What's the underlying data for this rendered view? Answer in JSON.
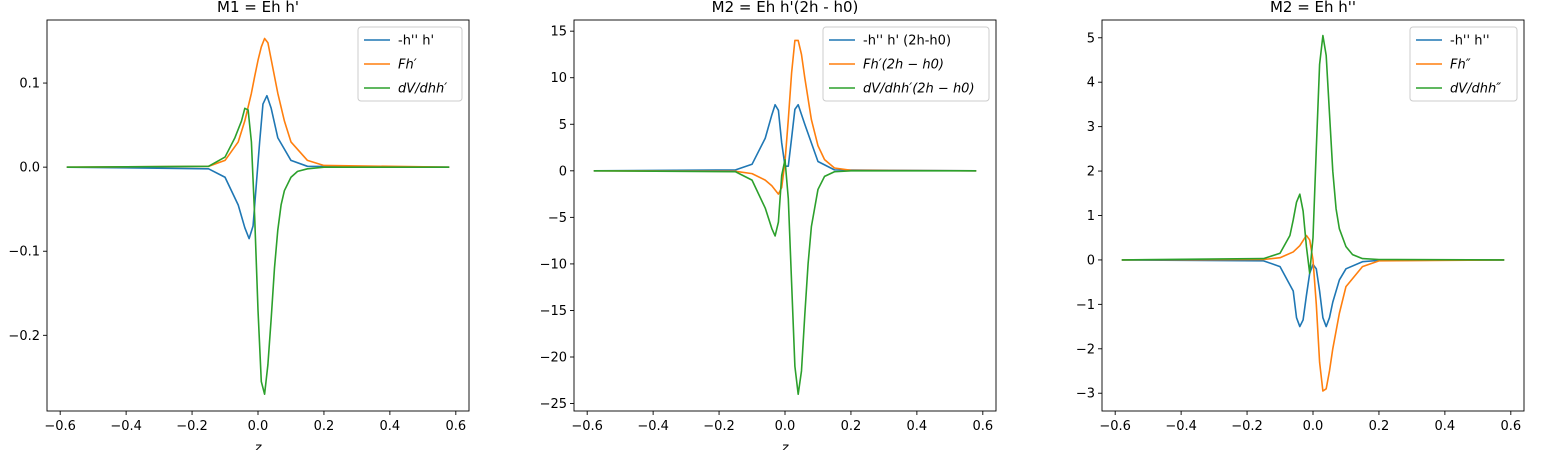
{
  "figure": {
    "background": "#ffffff"
  },
  "colors": {
    "series": [
      "#1f77b4",
      "#ff7f0e",
      "#2ca02c"
    ]
  },
  "chart_data": [
    {
      "type": "line",
      "title": "M1 = Eh h'",
      "xlabel": "z",
      "ylabel": "",
      "xlim": [
        -0.64,
        0.64
      ],
      "ylim": [
        -0.29,
        0.175
      ],
      "xticks": [
        -0.6,
        -0.4,
        -0.2,
        0.0,
        0.2,
        0.4,
        0.6
      ],
      "xtick_labels": [
        "−0.6",
        "−0.4",
        "−0.2",
        "0.0",
        "0.2",
        "0.4",
        "0.6"
      ],
      "yticks": [
        -0.2,
        -0.1,
        0.0,
        0.1
      ],
      "ytick_labels": [
        "−0.2",
        "−0.1",
        "0.0",
        "0.1"
      ],
      "legend_position": "upper right",
      "grid": false,
      "series": [
        {
          "name": "-h'' h'",
          "x": [
            -0.58,
            -0.15,
            -0.1,
            -0.06,
            -0.04,
            -0.027,
            -0.015,
            -0.005,
            0.005,
            0.015,
            0.027,
            0.04,
            0.06,
            0.1,
            0.15,
            0.58
          ],
          "y": [
            0,
            -0.002,
            -0.012,
            -0.045,
            -0.072,
            -0.085,
            -0.07,
            -0.02,
            0.03,
            0.075,
            0.085,
            0.07,
            0.035,
            0.008,
            0.001,
            0
          ]
        },
        {
          "name": "Fh′",
          "x": [
            -0.58,
            -0.15,
            -0.1,
            -0.06,
            -0.04,
            -0.02,
            -0.01,
            0.0,
            0.01,
            0.02,
            0.03,
            0.04,
            0.06,
            0.08,
            0.1,
            0.15,
            0.2,
            0.58
          ],
          "y": [
            0,
            0.001,
            0.008,
            0.03,
            0.055,
            0.088,
            0.108,
            0.127,
            0.143,
            0.153,
            0.148,
            0.128,
            0.088,
            0.055,
            0.03,
            0.008,
            0.002,
            0
          ]
        },
        {
          "name": "dV/dhh′",
          "x": [
            -0.58,
            -0.15,
            -0.1,
            -0.07,
            -0.05,
            -0.04,
            -0.03,
            -0.02,
            -0.01,
            0.0,
            0.01,
            0.02,
            0.03,
            0.04,
            0.05,
            0.06,
            0.07,
            0.08,
            0.1,
            0.12,
            0.15,
            0.2,
            0.58
          ],
          "y": [
            0,
            0.001,
            0.012,
            0.035,
            0.055,
            0.07,
            0.068,
            0.03,
            -0.06,
            -0.17,
            -0.255,
            -0.27,
            -0.235,
            -0.18,
            -0.12,
            -0.075,
            -0.045,
            -0.028,
            -0.012,
            -0.005,
            -0.002,
            0,
            0
          ]
        }
      ]
    },
    {
      "type": "line",
      "title": "M2 = Eh h'(2h - h0)",
      "xlabel": "z",
      "ylabel": "",
      "xlim": [
        -0.64,
        0.64
      ],
      "ylim": [
        -25.8,
        16.2
      ],
      "xticks": [
        -0.6,
        -0.4,
        -0.2,
        0.0,
        0.2,
        0.4,
        0.6
      ],
      "xtick_labels": [
        "−0.6",
        "−0.4",
        "−0.2",
        "0.0",
        "0.2",
        "0.4",
        "0.6"
      ],
      "yticks": [
        -25,
        -20,
        -15,
        -10,
        -5,
        0,
        5,
        10,
        15
      ],
      "ytick_labels": [
        "−25",
        "−20",
        "−15",
        "−10",
        "−5",
        "0",
        "5",
        "10",
        "15"
      ],
      "legend_position": "upper right",
      "grid": false,
      "series": [
        {
          "name": "-h'' h' (2h-h0)",
          "x": [
            -0.58,
            -0.15,
            -0.1,
            -0.06,
            -0.04,
            -0.03,
            -0.02,
            -0.01,
            0.0,
            0.01,
            0.02,
            0.03,
            0.04,
            0.06,
            0.1,
            0.15,
            0.58
          ],
          "y": [
            0,
            0.1,
            0.7,
            3.5,
            6.0,
            7.1,
            6.5,
            3.0,
            0.5,
            0.5,
            3.5,
            6.6,
            7.1,
            5.0,
            1.0,
            0.1,
            0
          ]
        },
        {
          "name": "Fh′(2h − h0)",
          "x": [
            -0.58,
            -0.15,
            -0.1,
            -0.06,
            -0.04,
            -0.02,
            -0.01,
            0.0,
            0.01,
            0.02,
            0.03,
            0.04,
            0.05,
            0.06,
            0.08,
            0.1,
            0.12,
            0.15,
            0.2,
            0.58
          ],
          "y": [
            0,
            -0.05,
            -0.3,
            -1.0,
            -1.6,
            -2.5,
            -1.8,
            1.0,
            5.5,
            10.5,
            14.0,
            14.0,
            12.5,
            10.0,
            5.5,
            2.7,
            1.2,
            0.3,
            0.05,
            0
          ]
        },
        {
          "name": "dV/dhh′(2h − h0)",
          "x": [
            -0.58,
            -0.15,
            -0.1,
            -0.06,
            -0.04,
            -0.03,
            -0.02,
            -0.01,
            0.0,
            0.01,
            0.02,
            0.03,
            0.04,
            0.05,
            0.06,
            0.07,
            0.08,
            0.1,
            0.12,
            0.15,
            0.2,
            0.58
          ],
          "y": [
            0,
            -0.1,
            -1.0,
            -4.0,
            -6.2,
            -7.0,
            -5.5,
            -0.5,
            1.2,
            -3.0,
            -12.0,
            -21.0,
            -24.0,
            -21.5,
            -15.5,
            -10.0,
            -6.0,
            -2.0,
            -0.6,
            -0.1,
            0,
            0
          ]
        }
      ]
    },
    {
      "type": "line",
      "title": "M2 = Eh h''",
      "xlabel": "",
      "ylabel": "",
      "xlim": [
        -0.64,
        0.64
      ],
      "ylim": [
        -3.4,
        5.4
      ],
      "xticks": [
        -0.6,
        -0.4,
        -0.2,
        0.0,
        0.2,
        0.4,
        0.6
      ],
      "xtick_labels": [
        "−0.6",
        "−0.4",
        "−0.2",
        "0.0",
        "0.2",
        "0.4",
        "0.6"
      ],
      "yticks": [
        -3,
        -2,
        -1,
        0,
        1,
        2,
        3,
        4,
        5
      ],
      "ytick_labels": [
        "−3",
        "−2",
        "−1",
        "0",
        "1",
        "2",
        "3",
        "4",
        "5"
      ],
      "legend_position": "upper right",
      "grid": false,
      "series": [
        {
          "name": "-h'' h''",
          "x": [
            -0.58,
            -0.15,
            -0.1,
            -0.06,
            -0.05,
            -0.04,
            -0.03,
            -0.02,
            -0.01,
            0.0,
            0.01,
            0.02,
            0.03,
            0.04,
            0.05,
            0.06,
            0.08,
            0.1,
            0.15,
            0.2,
            0.58
          ],
          "y": [
            0,
            -0.02,
            -0.15,
            -0.7,
            -1.3,
            -1.5,
            -1.35,
            -0.8,
            -0.3,
            -0.1,
            -0.2,
            -0.7,
            -1.3,
            -1.5,
            -1.3,
            -0.95,
            -0.45,
            -0.2,
            -0.04,
            -0.01,
            0
          ]
        },
        {
          "name": "Fh″",
          "x": [
            -0.58,
            -0.15,
            -0.1,
            -0.06,
            -0.04,
            -0.02,
            -0.01,
            0.0,
            0.01,
            0.02,
            0.03,
            0.04,
            0.05,
            0.06,
            0.08,
            0.1,
            0.15,
            0.2,
            0.58
          ],
          "y": [
            0,
            0.01,
            0.05,
            0.18,
            0.32,
            0.55,
            0.45,
            0.0,
            -1.0,
            -2.3,
            -2.95,
            -2.9,
            -2.5,
            -2.0,
            -1.2,
            -0.6,
            -0.15,
            -0.02,
            0
          ]
        },
        {
          "name": "dV/dhh″",
          "x": [
            -0.58,
            -0.15,
            -0.1,
            -0.07,
            -0.06,
            -0.05,
            -0.04,
            -0.03,
            -0.02,
            -0.01,
            0.0,
            0.01,
            0.02,
            0.03,
            0.04,
            0.05,
            0.06,
            0.07,
            0.08,
            0.1,
            0.12,
            0.15,
            0.2,
            0.58
          ],
          "y": [
            0,
            0.03,
            0.15,
            0.55,
            0.9,
            1.3,
            1.48,
            1.1,
            0.3,
            -0.3,
            0.5,
            2.5,
            4.4,
            5.05,
            4.6,
            3.3,
            2.0,
            1.15,
            0.7,
            0.3,
            0.12,
            0.03,
            0.01,
            0
          ]
        }
      ]
    }
  ]
}
